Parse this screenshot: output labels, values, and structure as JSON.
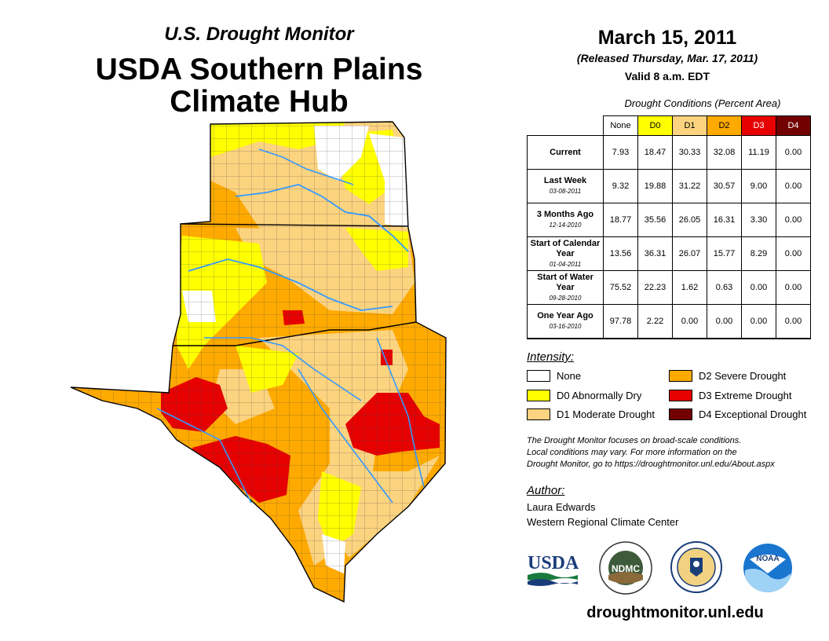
{
  "header": {
    "subtitle": "U.S. Drought Monitor",
    "title_line1": "USDA Southern Plains",
    "title_line2": "Climate Hub"
  },
  "date_block": {
    "date": "March 15, 2011",
    "released": "(Released Thursday, Mar. 17, 2011)",
    "valid": "Valid 8 a.m. EDT"
  },
  "stats": {
    "title": "Drought Conditions (Percent Area)",
    "columns": [
      {
        "label": "None",
        "color": "#ffffff",
        "text_color": "#000000"
      },
      {
        "label": "D0",
        "color": "#ffff00",
        "text_color": "#000000"
      },
      {
        "label": "D1",
        "color": "#fcd37f",
        "text_color": "#000000"
      },
      {
        "label": "D2",
        "color": "#ffaa00",
        "text_color": "#000000"
      },
      {
        "label": "D3",
        "color": "#e60000",
        "text_color": "#ffffff"
      },
      {
        "label": "D4",
        "color": "#730000",
        "text_color": "#ffffff"
      }
    ],
    "rows": [
      {
        "label": "Current",
        "date": "",
        "values": [
          "7.93",
          "18.47",
          "30.33",
          "32.08",
          "11.19",
          "0.00"
        ]
      },
      {
        "label": "Last Week",
        "date": "03-08-2011",
        "values": [
          "9.32",
          "19.88",
          "31.22",
          "30.57",
          "9.00",
          "0.00"
        ]
      },
      {
        "label": "3 Months Ago",
        "date": "12-14-2010",
        "values": [
          "18.77",
          "35.56",
          "26.05",
          "16.31",
          "3.30",
          "0.00"
        ]
      },
      {
        "label": "Start of Calendar Year",
        "date": "01-04-2011",
        "values": [
          "13.56",
          "36.31",
          "26.07",
          "15.77",
          "8.29",
          "0.00"
        ]
      },
      {
        "label": "Start of Water Year",
        "date": "09-28-2010",
        "values": [
          "75.52",
          "22.23",
          "1.62",
          "0.63",
          "0.00",
          "0.00"
        ]
      },
      {
        "label": "One Year Ago",
        "date": "03-16-2010",
        "values": [
          "97.78",
          "2.22",
          "0.00",
          "0.00",
          "0.00",
          "0.00"
        ]
      }
    ]
  },
  "intensity": {
    "title": "Intensity:",
    "items": [
      {
        "label": "None",
        "color": "#ffffff"
      },
      {
        "label": "D0 Abnormally Dry",
        "color": "#ffff00"
      },
      {
        "label": "D1 Moderate Drought",
        "color": "#fcd37f"
      },
      {
        "label": "D2 Severe Drought",
        "color": "#ffaa00"
      },
      {
        "label": "D3 Extreme Drought",
        "color": "#e60000"
      },
      {
        "label": "D4 Exceptional Drought",
        "color": "#730000"
      }
    ]
  },
  "note": {
    "line1": "The Drought Monitor focuses on broad-scale conditions.",
    "line2": "Local conditions may vary. For more information on the",
    "line3": "Drought Monitor, go to https://droughtmonitor.unl.edu/About.aspx"
  },
  "author": {
    "title": "Author:",
    "name": "Laura Edwards",
    "org": "Western Regional Climate Center"
  },
  "logos": {
    "usda": "USDA",
    "ndmc": "NDMC",
    "noaa": "NOAA"
  },
  "url": "droughtmonitor.unl.edu",
  "map": {
    "states": [
      "Kansas",
      "Oklahoma",
      "Texas"
    ],
    "colors": {
      "none": "#ffffff",
      "d0": "#ffff00",
      "d1": "#fcd37f",
      "d2": "#ffaa00",
      "d3": "#e60000",
      "d4": "#730000",
      "river": "#3399ff"
    }
  }
}
